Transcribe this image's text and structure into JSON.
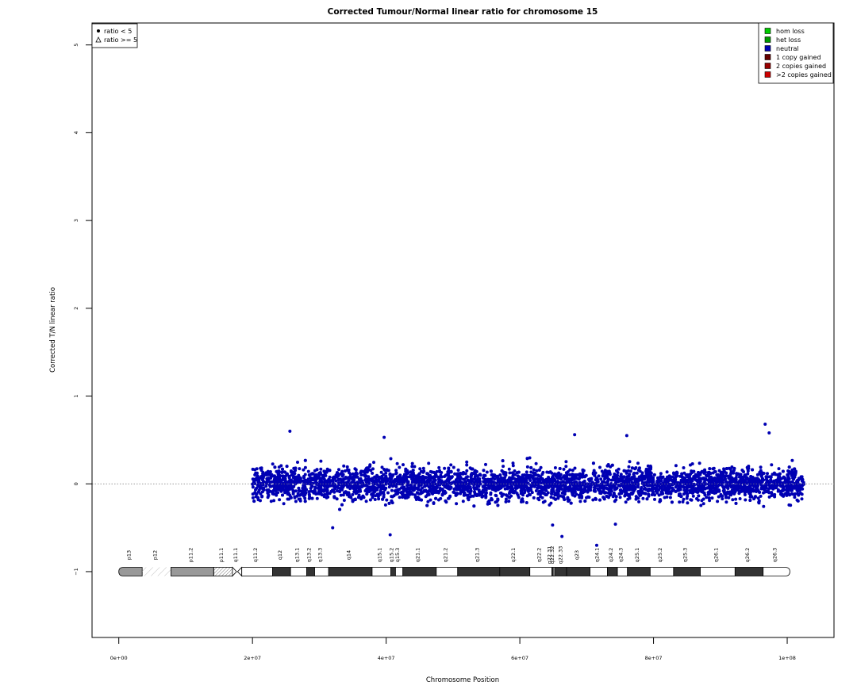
{
  "chart_data": {
    "type": "scatter",
    "title": "Corrected Tumour/Normal linear ratio for chromosome  15",
    "xlabel": "Chromosome Position",
    "ylabel": "Corrected T/N linear ratio",
    "xlim": [
      -4000000,
      107000000
    ],
    "ylim": [
      -1.75,
      5.25
    ],
    "x_ticks": [
      {
        "value": 0,
        "label": "0e+00"
      },
      {
        "value": 20000000,
        "label": "2e+07"
      },
      {
        "value": 40000000,
        "label": "4e+07"
      },
      {
        "value": 60000000,
        "label": "6e+07"
      },
      {
        "value": 80000000,
        "label": "8e+07"
      },
      {
        "value": 100000000,
        "label": "1e+08"
      }
    ],
    "y_ticks": [
      {
        "value": -1,
        "label": "−1"
      },
      {
        "value": 0,
        "label": "0"
      },
      {
        "value": 1,
        "label": "1"
      },
      {
        "value": 2,
        "label": "2"
      },
      {
        "value": 3,
        "label": "3"
      },
      {
        "value": 4,
        "label": "4"
      },
      {
        "value": 5,
        "label": "5"
      }
    ],
    "reference_line": {
      "y": 0,
      "style": "dotted",
      "color": "#666666"
    },
    "grid": false,
    "point_legend": {
      "placement": "top-left",
      "entries": [
        {
          "symbol": "circle",
          "label": "ratio < 5"
        },
        {
          "symbol": "triangle",
          "label": "ratio >= 5"
        }
      ]
    },
    "state_legend": {
      "placement": "top-right",
      "entries": [
        {
          "label": "hom loss",
          "color": "#00cc00"
        },
        {
          "label": "het loss",
          "color": "#009900"
        },
        {
          "label": "neutral",
          "color": "#0000b3"
        },
        {
          "label": "1 copy gained",
          "color": "#660000"
        },
        {
          "label": "2 copies gained",
          "color": "#990000"
        },
        {
          "label": ">2 copies gained",
          "color": "#cc0000"
        }
      ]
    },
    "series": [
      {
        "name": "neutral",
        "color": "#0000b3",
        "x_range": [
          20000000,
          102500000
        ],
        "gap": [
          21700000,
          22000000
        ],
        "center": 0,
        "spread": 0.13,
        "band_low": -0.3,
        "band_high": 0.3,
        "outliers": [
          {
            "x": 25600000,
            "y": 0.6
          },
          {
            "x": 39700000,
            "y": 0.53
          },
          {
            "x": 68200000,
            "y": 0.56
          },
          {
            "x": 76000000,
            "y": 0.55
          },
          {
            "x": 96700000,
            "y": 0.68
          },
          {
            "x": 97300000,
            "y": 0.58
          },
          {
            "x": 40600000,
            "y": -0.58
          },
          {
            "x": 64900000,
            "y": -0.47
          },
          {
            "x": 66300000,
            "y": -0.6
          },
          {
            "x": 71500000,
            "y": -0.7
          },
          {
            "x": 32000000,
            "y": -0.5
          },
          {
            "x": 74300000,
            "y": -0.46
          }
        ]
      }
    ],
    "ideogram": {
      "y": -1,
      "bands": [
        {
          "name": "p13",
          "start": 0,
          "end": 3500000,
          "type": "acen-cap",
          "color": "#999999"
        },
        {
          "name": "p12",
          "start": 3500000,
          "end": 7800000,
          "type": "stalk"
        },
        {
          "name": "p11.2",
          "start": 7800000,
          "end": 14200000,
          "type": "gpos",
          "color": "#999999"
        },
        {
          "name": "p11.1",
          "start": 14200000,
          "end": 17000000,
          "type": "stalk-dense"
        },
        {
          "name": "q11.1",
          "start": 17000000,
          "end": 18400000,
          "type": "centromere"
        },
        {
          "name": "q11.2",
          "start": 18400000,
          "end": 23000000,
          "type": "gneg"
        },
        {
          "name": "q12",
          "start": 23000000,
          "end": 25700000,
          "type": "gpos",
          "color": "#333333"
        },
        {
          "name": "q13.1",
          "start": 25700000,
          "end": 28100000,
          "type": "gneg"
        },
        {
          "name": "q13.2",
          "start": 28100000,
          "end": 29300000,
          "type": "gpos",
          "color": "#333333"
        },
        {
          "name": "q13.3",
          "start": 29300000,
          "end": 31400000,
          "type": "gneg"
        },
        {
          "name": "q14",
          "start": 31400000,
          "end": 37900000,
          "type": "gpos",
          "color": "#333333"
        },
        {
          "name": "q15.1",
          "start": 37900000,
          "end": 40700000,
          "type": "gneg"
        },
        {
          "name": "q15.2",
          "start": 40700000,
          "end": 41400000,
          "type": "gpos",
          "color": "#333333"
        },
        {
          "name": "q15.3",
          "start": 41400000,
          "end": 42500000,
          "type": "gneg"
        },
        {
          "name": "q21.1",
          "start": 42500000,
          "end": 47500000,
          "type": "gpos",
          "color": "#333333"
        },
        {
          "name": "q21.2",
          "start": 47500000,
          "end": 50700000,
          "type": "gneg"
        },
        {
          "name": "q21.3",
          "start": 50700000,
          "end": 57000000,
          "type": "gpos",
          "color": "#333333"
        },
        {
          "name": "q22.1",
          "start": 57000000,
          "end": 61500000,
          "type": "gpos",
          "color": "#333333"
        },
        {
          "name": "q22.2",
          "start": 61500000,
          "end": 64800000,
          "type": "gneg"
        },
        {
          "name": "q22.31",
          "start": 64800000,
          "end": 65000000,
          "type": "gpos",
          "color": "#333333"
        },
        {
          "name": "q22.32",
          "start": 65000000,
          "end": 65200000,
          "type": "gneg"
        },
        {
          "name": "q22.33",
          "start": 65200000,
          "end": 67000000,
          "type": "gpos",
          "color": "#333333"
        },
        {
          "name": "q23",
          "start": 67000000,
          "end": 70500000,
          "type": "gpos",
          "color": "#333333"
        },
        {
          "name": "q24.1",
          "start": 70500000,
          "end": 73100000,
          "type": "gneg"
        },
        {
          "name": "q24.2",
          "start": 73100000,
          "end": 74600000,
          "type": "gpos",
          "color": "#333333"
        },
        {
          "name": "q24.3",
          "start": 74600000,
          "end": 76100000,
          "type": "gneg"
        },
        {
          "name": "q25.1",
          "start": 76100000,
          "end": 79500000,
          "type": "gpos",
          "color": "#333333"
        },
        {
          "name": "q25.2",
          "start": 79500000,
          "end": 83000000,
          "type": "gneg"
        },
        {
          "name": "q25.3",
          "start": 83000000,
          "end": 87000000,
          "type": "gpos",
          "color": "#333333"
        },
        {
          "name": "q26.1",
          "start": 87000000,
          "end": 92200000,
          "type": "gneg"
        },
        {
          "name": "q26.2",
          "start": 92200000,
          "end": 96400000,
          "type": "gpos",
          "color": "#333333"
        },
        {
          "name": "q26.3",
          "start": 96400000,
          "end": 100400000,
          "type": "end-cap"
        }
      ],
      "dense_labels": [
        "q22.31",
        "q22.32",
        "q22.33"
      ]
    }
  }
}
